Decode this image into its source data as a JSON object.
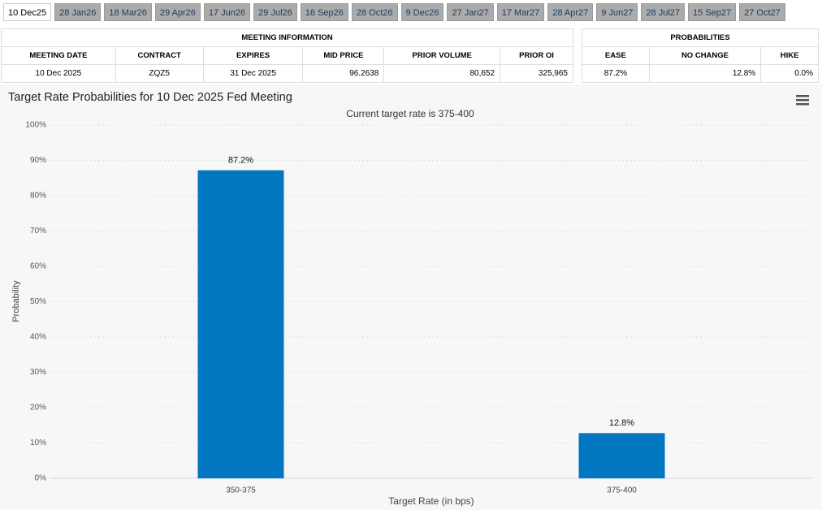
{
  "tabs": [
    "10 Dec25",
    "28 Jan26",
    "18 Mar26",
    "29 Apr26",
    "17 Jun26",
    "29 Jul26",
    "16 Sep26",
    "28 Oct26",
    "9 Dec26",
    "27 Jan27",
    "17 Mar27",
    "28 Apr27",
    "9 Jun27",
    "28 Jul27",
    "15 Sep27",
    "27 Oct27"
  ],
  "meeting_table": {
    "title": "MEETING INFORMATION",
    "headers": [
      "MEETING DATE",
      "CONTRACT",
      "EXPIRES",
      "MID PRICE",
      "PRIOR VOLUME",
      "PRIOR OI"
    ],
    "rows": [
      [
        "10 Dec 2025",
        "ZQZ5",
        "31 Dec 2025",
        "96.2638",
        "80,652",
        "325,965"
      ]
    ]
  },
  "probability_table": {
    "title": "PROBABILITIES",
    "headers": [
      "EASE",
      "NO CHANGE",
      "HIKE"
    ],
    "rows": [
      [
        "87.2%",
        "12.8%",
        "0.0%"
      ]
    ]
  },
  "chart_data": {
    "type": "bar",
    "title": "Target Rate Probabilities for 10 Dec 2025 Fed Meeting",
    "subtitle": "Current target rate is 375-400",
    "x_label": "Target Rate (in bps)",
    "y_label": "Probability",
    "categories": [
      "350-375",
      "375-400"
    ],
    "values": [
      87.2,
      12.8
    ],
    "value_labels": [
      "87.2%",
      "12.8%"
    ],
    "color": "#0077c0",
    "ylim": [
      0,
      100
    ],
    "yticks": [
      {
        "value": 0,
        "label": "0%"
      },
      {
        "value": 10,
        "label": "10%"
      },
      {
        "value": 20,
        "label": "20%"
      },
      {
        "value": 30,
        "label": "30%"
      },
      {
        "value": 40,
        "label": "40%"
      },
      {
        "value": 50,
        "label": "50%"
      },
      {
        "value": 60,
        "label": "60%"
      },
      {
        "value": 70,
        "label": "70%"
      },
      {
        "value": 80,
        "label": "80%"
      },
      {
        "value": 90,
        "label": "90%"
      },
      {
        "value": 100,
        "label": "100%"
      }
    ],
    "grid": true
  }
}
